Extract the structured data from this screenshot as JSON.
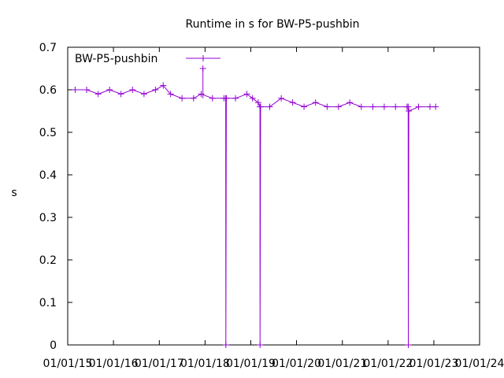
{
  "chart_data": {
    "type": "line",
    "title": "Runtime in s for BW-P5-pushbin",
    "xlabel": "",
    "ylabel": "s",
    "xlim": [
      "2015-01-01",
      "2024-01-01"
    ],
    "ylim": [
      0,
      0.7
    ],
    "x_ticks": [
      "01/01/15",
      "01/01/16",
      "01/01/17",
      "01/01/18",
      "01/01/19",
      "01/01/20",
      "01/01/21",
      "01/01/22",
      "01/01/23",
      "01/01/24"
    ],
    "y_ticks": [
      "0",
      "0.1",
      "0.2",
      "0.3",
      "0.4",
      "0.5",
      "0.6",
      "0.7"
    ],
    "grid": false,
    "legend_position": "top-left",
    "series_color": "#9400d3",
    "series": [
      {
        "name": "BW-P5-pushbin",
        "x": [
          "2015-03-01",
          "2015-06-01",
          "2015-09-01",
          "2015-12-01",
          "2016-03-01",
          "2016-06-01",
          "2016-09-01",
          "2016-12-01",
          "2017-02-01",
          "2017-04-01",
          "2017-07-01",
          "2017-10-01",
          "2017-12-01",
          "2018-03-01",
          "2018-06-01",
          "2018-06-15",
          "2018-06-16",
          "2018-06-20",
          "2018-09-01",
          "2018-12-01",
          "2019-01-15",
          "2019-03-01",
          "2019-03-15",
          "2019-03-16",
          "2019-03-20",
          "2019-06-01",
          "2019-09-01",
          "2019-12-01",
          "2020-03-01",
          "2020-06-01",
          "2020-09-01",
          "2020-12-01",
          "2021-03-01",
          "2021-06-01",
          "2021-09-01",
          "2021-12-01",
          "2022-03-01",
          "2022-06-01",
          "2022-06-10",
          "2022-06-11",
          "2022-06-15",
          "2022-09-01",
          "2022-12-01",
          "2023-01-15"
        ],
        "y": [
          0.6,
          0.6,
          0.59,
          0.6,
          0.59,
          0.6,
          0.59,
          0.6,
          0.61,
          0.59,
          0.58,
          0.58,
          0.59,
          0.58,
          0.58,
          0.58,
          0.0,
          0.58,
          0.58,
          0.59,
          0.58,
          0.57,
          0.56,
          0.0,
          0.56,
          0.56,
          0.58,
          0.57,
          0.56,
          0.57,
          0.56,
          0.56,
          0.57,
          0.56,
          0.56,
          0.56,
          0.56,
          0.56,
          0.56,
          0.0,
          0.55,
          0.56,
          0.56,
          0.56
        ]
      }
    ],
    "outliers": [
      {
        "x": "2017-12-15",
        "y": 0.65
      }
    ]
  }
}
